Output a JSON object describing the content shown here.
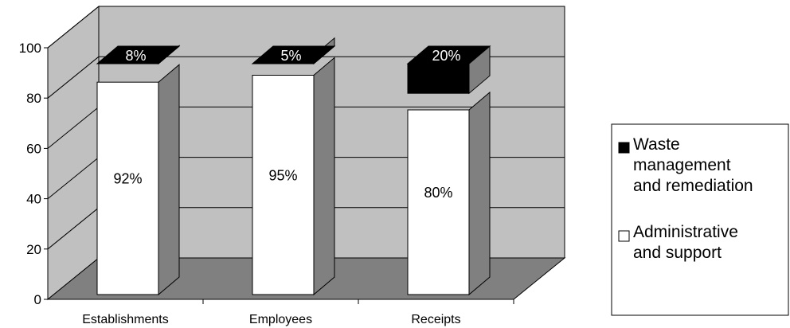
{
  "chart_data": {
    "type": "bar",
    "stacked": true,
    "three_d": true,
    "title": "",
    "xlabel": "",
    "ylabel": "",
    "ylim": [
      0,
      100
    ],
    "yticks": [
      "0",
      "20",
      "40",
      "60",
      "80",
      "100"
    ],
    "categories": [
      "Establishments",
      "Employees",
      "Receipts"
    ],
    "series": [
      {
        "name": "Administrative and support",
        "values": [
          92,
          95,
          80
        ],
        "labels": [
          "92%",
          "95%",
          "80%"
        ],
        "color": "#ffffff"
      },
      {
        "name": "Waste management and remediation",
        "values": [
          8,
          5,
          20
        ],
        "labels": [
          "8%",
          "5%",
          "20%"
        ],
        "color": "#000000"
      }
    ],
    "grid": true,
    "legend_position": "right",
    "legend": {
      "items": [
        {
          "lines": [
            "Waste",
            "management",
            "and remediation"
          ],
          "color": "#000000"
        },
        {
          "lines": [
            "Administrative",
            "and support"
          ],
          "color": "#ffffff"
        }
      ]
    },
    "colors": {
      "wall": "#c0c0c0",
      "floor": "#808080",
      "bar_side": "#808080"
    }
  }
}
